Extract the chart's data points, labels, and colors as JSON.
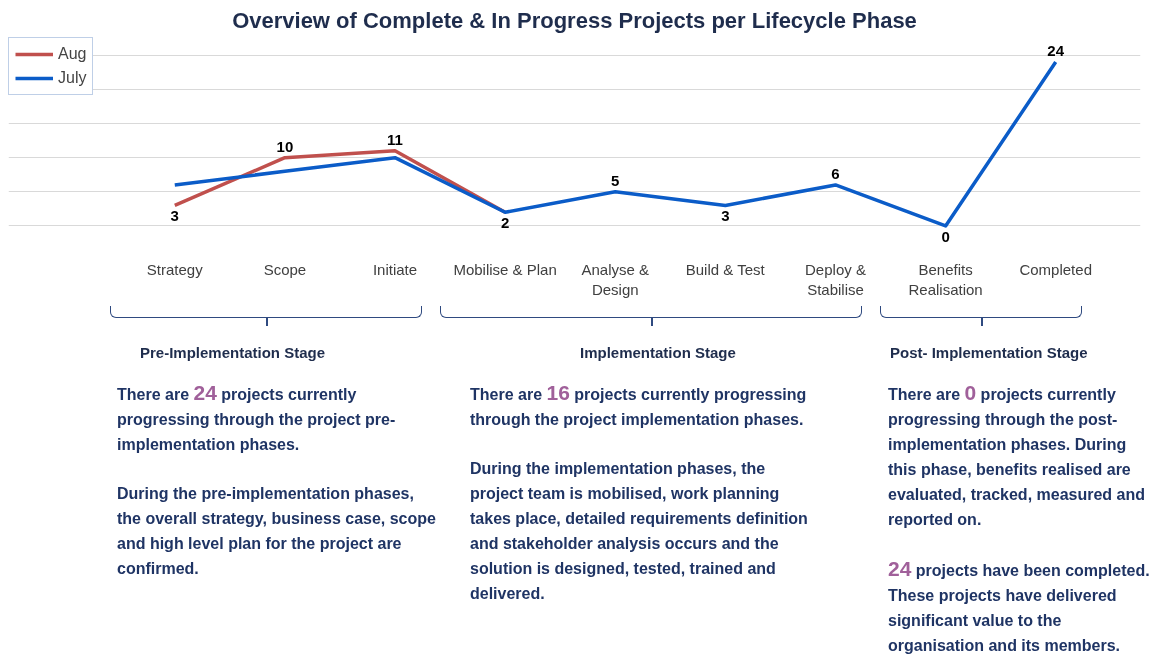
{
  "chart_data": {
    "type": "line",
    "title": "Overview of Complete & In Progress Projects per Lifecycle Phase",
    "categories": [
      "Strategy",
      "Scope",
      "Initiate",
      "Mobilise & Plan",
      "Analyse & Design",
      "Build & Test",
      "Deploy & Stabilise",
      "Benefits Realisation",
      "Completed"
    ],
    "series": [
      {
        "name": "Aug",
        "color": "#c0504d",
        "values": [
          3,
          10,
          11,
          2,
          null,
          null,
          null,
          null,
          null
        ],
        "value_labels": [
          "3",
          "10",
          "11",
          null,
          null,
          null,
          null,
          null,
          null
        ]
      },
      {
        "name": "July",
        "color": "#0b5cc8",
        "values": [
          6,
          8,
          10,
          2,
          5,
          3,
          6,
          0,
          24
        ],
        "value_labels": [
          null,
          null,
          null,
          "2",
          "5",
          "3",
          "6",
          "0",
          "24"
        ]
      }
    ],
    "tick_labels": "x",
    "grid": "y",
    "legend": "top left",
    "marker": "none",
    "line_style": "solid",
    "annotations": [
      "Pre-Implementation Stage",
      "There are 24 projects currently progressing through the project pre-implementation phases.",
      "During the pre-implementation phases, the overall strategy, business case, scope and high level plan for the project are confirmed.",
      "Implementation Stage",
      "There are 16 projects currently progressing through the project implementation phases.",
      "During the implementation phases, the project team is mobilised, work planning takes place, detailed requirements definition and stakeholder analysis occurs and the solution is designed, tested, trained and delivered.",
      "Post- Implementation Stage",
      "There are 0 projects currently progressing through the post-implementation phases. During this phase, benefits realised are evaluated, tracked, measured and reported on.",
      "24 projects have been completed. These projects have delivered significant value to the organisation and its members."
    ]
  }
}
